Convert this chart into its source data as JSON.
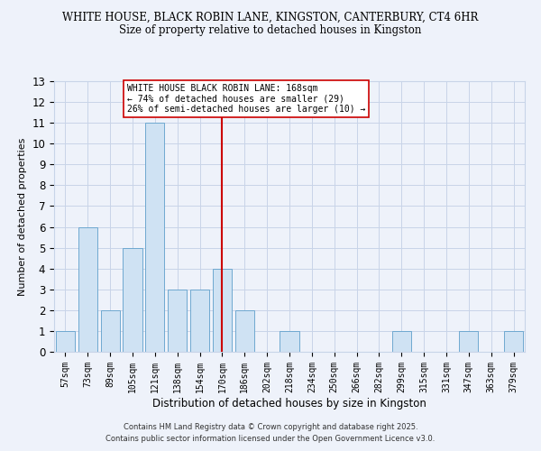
{
  "title1": "WHITE HOUSE, BLACK ROBIN LANE, KINGSTON, CANTERBURY, CT4 6HR",
  "title2": "Size of property relative to detached houses in Kingston",
  "xlabel": "Distribution of detached houses by size in Kingston",
  "ylabel": "Number of detached properties",
  "footnote1": "Contains HM Land Registry data © Crown copyright and database right 2025.",
  "footnote2": "Contains public sector information licensed under the Open Government Licence v3.0.",
  "annotation_line1": "WHITE HOUSE BLACK ROBIN LANE: 168sqm",
  "annotation_line2": "← 74% of detached houses are smaller (29)",
  "annotation_line3": "26% of semi-detached houses are larger (10) →",
  "property_size": 168,
  "bar_color": "#cfe2f3",
  "bar_edge_color": "#6fa8d0",
  "reference_line_color": "#cc0000",
  "reference_box_color": "#cc0000",
  "background_color": "#eef2fa",
  "categories": [
    "57sqm",
    "73sqm",
    "89sqm",
    "105sqm",
    "121sqm",
    "138sqm",
    "154sqm",
    "170sqm",
    "186sqm",
    "202sqm",
    "218sqm",
    "234sqm",
    "250sqm",
    "266sqm",
    "282sqm",
    "299sqm",
    "315sqm",
    "331sqm",
    "347sqm",
    "363sqm",
    "379sqm"
  ],
  "values": [
    1,
    6,
    2,
    5,
    11,
    3,
    3,
    4,
    2,
    0,
    1,
    0,
    0,
    0,
    0,
    1,
    0,
    0,
    1,
    0,
    1
  ],
  "ylim": [
    0,
    13
  ],
  "yticks": [
    0,
    1,
    2,
    3,
    4,
    5,
    6,
    7,
    8,
    9,
    10,
    11,
    12,
    13
  ],
  "reference_bar_index": 7,
  "grid_color": "#c8d4e8"
}
